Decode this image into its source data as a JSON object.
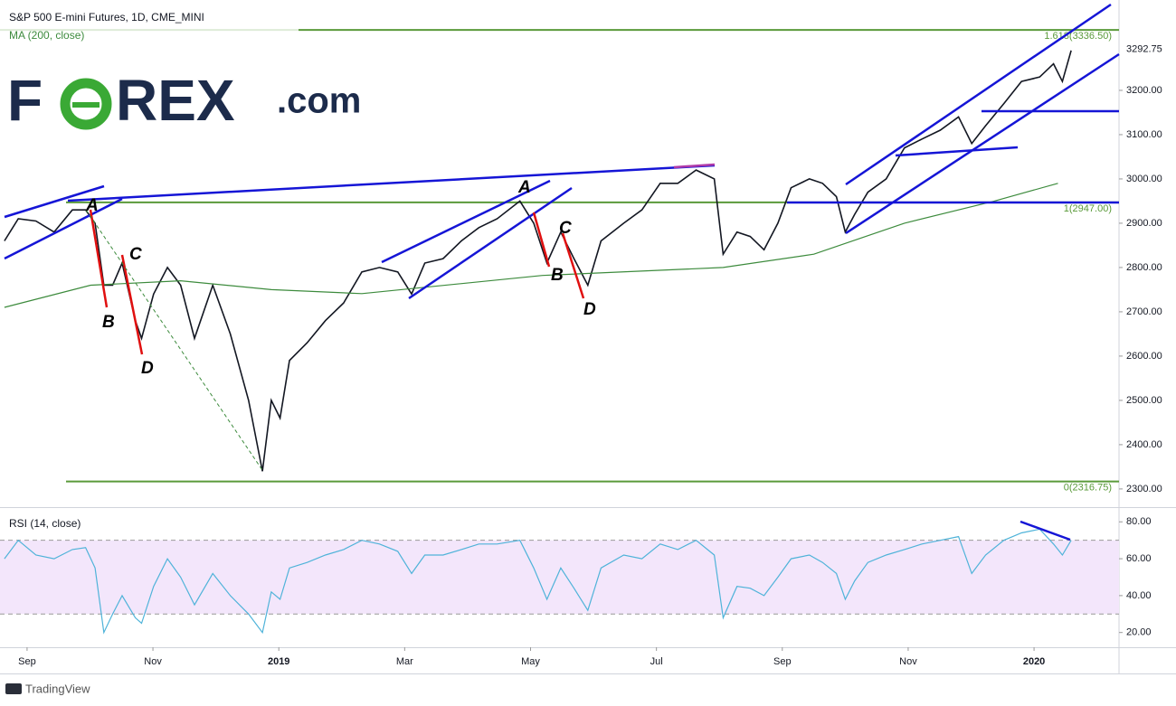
{
  "header": {
    "title": "S&P 500 E-mini Futures, 1D, CME_MINI"
  },
  "logo": {
    "left": "F",
    "right": "REX",
    "suffix": ".com"
  },
  "footer": {
    "brand": "TradingView"
  },
  "annotations": [
    "A",
    "B",
    "C",
    "D",
    "A",
    "B",
    "C",
    "D"
  ],
  "chart_data": [
    {
      "type": "line",
      "xlim": [
        -0.43,
        17.35
      ],
      "ylim": [
        2261,
        3404
      ],
      "yticks": [
        {
          "value": 3200,
          "label": "3200.00"
        },
        {
          "value": 3100,
          "label": "3100.00"
        },
        {
          "value": 3000,
          "label": "3000.00"
        },
        {
          "value": 2900,
          "label": "2900.00"
        },
        {
          "value": 2800,
          "label": "2800.00"
        },
        {
          "value": 2700,
          "label": "2700.00"
        },
        {
          "value": 2600,
          "label": "2600.00"
        },
        {
          "value": 2500,
          "label": "2500.00"
        },
        {
          "value": 2400,
          "label": "2400.00"
        },
        {
          "value": 2300,
          "label": "2300.00"
        }
      ],
      "last_price": {
        "value": 3292.75,
        "label": "3292.75"
      },
      "fib_levels": [
        {
          "value": 3336.5,
          "label": "1.618(3336.50)"
        },
        {
          "value": 2947,
          "label": "1(2947.00)"
        },
        {
          "value": 2316.75,
          "label": "0(2316.75)"
        }
      ],
      "fib_color": "#5a9a3a",
      "x": [
        -0.36,
        -0.14,
        0.14,
        0.43,
        0.72,
        0.93,
        1.08,
        1.22,
        1.36,
        1.51,
        1.72,
        1.82,
        2.01,
        2.23,
        2.44,
        2.66,
        2.95,
        3.23,
        3.52,
        3.74,
        3.88,
        4.02,
        4.17,
        4.45,
        4.74,
        5.03,
        5.32,
        5.6,
        5.89,
        6.11,
        6.32,
        6.61,
        6.9,
        7.18,
        7.47,
        7.83,
        8.05,
        8.26,
        8.48,
        8.69,
        8.91,
        9.12,
        9.48,
        9.77,
        10.06,
        10.34,
        10.63,
        10.92,
        11.06,
        11.28,
        11.49,
        11.71,
        11.93,
        12.14,
        12.43,
        12.64,
        12.86,
        13.0,
        13.15,
        13.36,
        13.65,
        13.94,
        14.22,
        14.51,
        14.8,
        15.01,
        15.23,
        15.52,
        15.8,
        16.09,
        16.31,
        16.45,
        16.59
      ],
      "series": [
        {
          "color": "#131722",
          "values": [
            2860,
            2910,
            2905,
            2880,
            2930,
            2930,
            2900,
            2760,
            2760,
            2810,
            2680,
            2640,
            2740,
            2800,
            2760,
            2640,
            2760,
            2650,
            2500,
            2340,
            2500,
            2460,
            2590,
            2630,
            2680,
            2720,
            2790,
            2800,
            2790,
            2740,
            2810,
            2820,
            2860,
            2890,
            2910,
            2950,
            2900,
            2810,
            2880,
            2820,
            2760,
            2860,
            2900,
            2930,
            2990,
            2990,
            3020,
            3000,
            2830,
            2880,
            2870,
            2840,
            2900,
            2980,
            3000,
            2990,
            2960,
            2880,
            2920,
            2970,
            3000,
            3070,
            3090,
            3110,
            3140,
            3080,
            3120,
            3170,
            3220,
            3230,
            3260,
            3220,
            3290
          ]
        },
        {
          "name": "MA (200, close)",
          "color": "#3d8b3d",
          "x": [
            -0.36,
            1.01,
            2.44,
            3.88,
            5.32,
            8.19,
            11.06,
            12.5,
            13.94,
            15.37,
            16.38
          ],
          "values": [
            2710,
            2760,
            2770,
            2750,
            2741,
            2782,
            2800,
            2830,
            2900,
            2950,
            2990
          ]
        }
      ]
    },
    {
      "type": "line",
      "title": "RSI (14, close)",
      "xlim": [
        -0.43,
        17.35
      ],
      "ylim": [
        12,
        87
      ],
      "yticks": [
        {
          "value": 80,
          "label": "80.00"
        },
        {
          "value": 60,
          "label": "60.00"
        },
        {
          "value": 40,
          "label": "40.00"
        },
        {
          "value": 20,
          "label": "20.00"
        }
      ],
      "band": [
        30,
        70
      ],
      "band_color": "#f3e6fb",
      "xticks": [
        {
          "value": 0,
          "label": "Sep"
        },
        {
          "value": 2,
          "label": "Nov"
        },
        {
          "value": 4,
          "label": "2019"
        },
        {
          "value": 6,
          "label": "Mar"
        },
        {
          "value": 8,
          "label": "May"
        },
        {
          "value": 10,
          "label": "Jul"
        },
        {
          "value": 12,
          "label": "Sep"
        },
        {
          "value": 14,
          "label": "Nov"
        },
        {
          "value": 16,
          "label": "2020"
        }
      ],
      "x": [
        -0.36,
        -0.14,
        0.14,
        0.43,
        0.72,
        0.93,
        1.08,
        1.22,
        1.36,
        1.51,
        1.72,
        1.82,
        2.01,
        2.23,
        2.44,
        2.66,
        2.95,
        3.23,
        3.52,
        3.74,
        3.88,
        4.02,
        4.17,
        4.45,
        4.74,
        5.03,
        5.32,
        5.6,
        5.89,
        6.11,
        6.32,
        6.61,
        6.9,
        7.18,
        7.47,
        7.83,
        8.05,
        8.26,
        8.48,
        8.69,
        8.91,
        9.12,
        9.48,
        9.77,
        10.06,
        10.34,
        10.63,
        10.92,
        11.06,
        11.28,
        11.49,
        11.71,
        11.93,
        12.14,
        12.43,
        12.64,
        12.86,
        13.0,
        13.15,
        13.36,
        13.65,
        13.94,
        14.22,
        14.51,
        14.8,
        15.01,
        15.23,
        15.52,
        15.8,
        16.09,
        16.31,
        16.45,
        16.59
      ],
      "series": [
        {
          "color": "#4fb3d9",
          "values": [
            60,
            70,
            62,
            60,
            65,
            66,
            55,
            20,
            30,
            40,
            28,
            25,
            45,
            60,
            50,
            35,
            52,
            40,
            30,
            20,
            42,
            38,
            55,
            58,
            62,
            65,
            70,
            68,
            64,
            52,
            62,
            62,
            65,
            68,
            68,
            70,
            55,
            38,
            55,
            44,
            32,
            55,
            62,
            60,
            68,
            65,
            70,
            62,
            28,
            45,
            44,
            40,
            50,
            60,
            62,
            58,
            52,
            38,
            48,
            58,
            62,
            65,
            68,
            70,
            72,
            52,
            62,
            70,
            74,
            76,
            68,
            62,
            70
          ]
        }
      ]
    }
  ]
}
